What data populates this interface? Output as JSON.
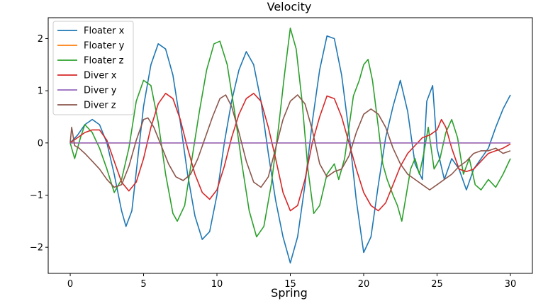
{
  "chart_data": {
    "type": "line",
    "title": "Velocity",
    "xlabel": "Spring",
    "ylabel": "",
    "xlim": [
      -1.5,
      31.5
    ],
    "ylim": [
      -2.5,
      2.4
    ],
    "xticks": [
      0,
      5,
      10,
      15,
      20,
      25,
      30
    ],
    "yticks": [
      -2,
      -1,
      0,
      1,
      2
    ],
    "ytick_labels": [
      "−2",
      "−1",
      "0",
      "1",
      "2"
    ],
    "grid": false,
    "legend_position": "top-left",
    "series": [
      {
        "name": "Floater x",
        "color": "#1f77b4",
        "points": [
          [
            0,
            0
          ],
          [
            0.5,
            0.15
          ],
          [
            1,
            0.35
          ],
          [
            1.5,
            0.45
          ],
          [
            2,
            0.35
          ],
          [
            2.5,
            0
          ],
          [
            3,
            -0.6
          ],
          [
            3.5,
            -1.3
          ],
          [
            3.8,
            -1.6
          ],
          [
            4.2,
            -1.3
          ],
          [
            4.6,
            -0.3
          ],
          [
            5,
            0.7
          ],
          [
            5.5,
            1.5
          ],
          [
            6,
            1.9
          ],
          [
            6.5,
            1.8
          ],
          [
            7,
            1.3
          ],
          [
            7.5,
            0.4
          ],
          [
            8,
            -0.6
          ],
          [
            8.5,
            -1.4
          ],
          [
            9,
            -1.85
          ],
          [
            9.5,
            -1.7
          ],
          [
            10,
            -1.0
          ],
          [
            10.5,
            0
          ],
          [
            11,
            0.8
          ],
          [
            11.5,
            1.4
          ],
          [
            12,
            1.75
          ],
          [
            12.5,
            1.5
          ],
          [
            13,
            0.8
          ],
          [
            13.5,
            -0.2
          ],
          [
            14,
            -1.1
          ],
          [
            14.5,
            -1.8
          ],
          [
            15,
            -2.3
          ],
          [
            15.5,
            -1.8
          ],
          [
            16,
            -0.8
          ],
          [
            16.5,
            0.4
          ],
          [
            17,
            1.4
          ],
          [
            17.5,
            2.05
          ],
          [
            18,
            2.0
          ],
          [
            18.5,
            1.3
          ],
          [
            19,
            0.2
          ],
          [
            19.5,
            -1.1
          ],
          [
            20,
            -2.1
          ],
          [
            20.5,
            -1.8
          ],
          [
            21,
            -0.8
          ],
          [
            21.5,
            0.1
          ],
          [
            22,
            0.7
          ],
          [
            22.5,
            1.2
          ],
          [
            23,
            0.6
          ],
          [
            23.5,
            -0.4
          ],
          [
            24,
            -0.7
          ],
          [
            24.3,
            0.8
          ],
          [
            24.7,
            1.1
          ],
          [
            25,
            -0.1
          ],
          [
            25.5,
            -0.7
          ],
          [
            26,
            -0.3
          ],
          [
            26.5,
            -0.5
          ],
          [
            27,
            -0.9
          ],
          [
            27.5,
            -0.5
          ],
          [
            28,
            -0.3
          ],
          [
            28.5,
            -0.1
          ],
          [
            29,
            0.3
          ],
          [
            29.5,
            0.65
          ],
          [
            30,
            0.92
          ]
        ]
      },
      {
        "name": "Floater y",
        "color": "#ff7f0e",
        "points": [
          [
            0,
            0
          ],
          [
            30,
            0
          ]
        ]
      },
      {
        "name": "Floater z",
        "color": "#2ca02c",
        "points": [
          [
            0,
            0
          ],
          [
            0.3,
            -0.3
          ],
          [
            0.7,
            0.1
          ],
          [
            1,
            0.35
          ],
          [
            1.5,
            0.2
          ],
          [
            2,
            -0.1
          ],
          [
            2.5,
            -0.5
          ],
          [
            3,
            -0.95
          ],
          [
            3.5,
            -0.7
          ],
          [
            4,
            -0.1
          ],
          [
            4.5,
            0.8
          ],
          [
            5,
            1.2
          ],
          [
            5.5,
            1.1
          ],
          [
            6,
            0.4
          ],
          [
            6.5,
            -0.6
          ],
          [
            7,
            -1.35
          ],
          [
            7.3,
            -1.5
          ],
          [
            7.8,
            -1.2
          ],
          [
            8.3,
            -0.3
          ],
          [
            8.8,
            0.6
          ],
          [
            9.3,
            1.4
          ],
          [
            9.8,
            1.9
          ],
          [
            10.2,
            1.95
          ],
          [
            10.7,
            1.5
          ],
          [
            11.2,
            0.6
          ],
          [
            11.7,
            -0.4
          ],
          [
            12.2,
            -1.3
          ],
          [
            12.7,
            -1.8
          ],
          [
            13.2,
            -1.6
          ],
          [
            13.7,
            -0.8
          ],
          [
            14.2,
            0.3
          ],
          [
            14.6,
            1.3
          ],
          [
            15,
            2.2
          ],
          [
            15.4,
            1.8
          ],
          [
            15.8,
            0.8
          ],
          [
            16.2,
            -0.5
          ],
          [
            16.6,
            -1.35
          ],
          [
            17,
            -1.2
          ],
          [
            17.5,
            -0.6
          ],
          [
            18,
            -0.4
          ],
          [
            18.3,
            -0.7
          ],
          [
            18.7,
            -0.3
          ],
          [
            19,
            0.3
          ],
          [
            19.3,
            0.9
          ],
          [
            19.7,
            1.2
          ],
          [
            20,
            1.5
          ],
          [
            20.3,
            1.6
          ],
          [
            20.6,
            1.2
          ],
          [
            21,
            0.3
          ],
          [
            21.3,
            -0.4
          ],
          [
            21.6,
            -0.7
          ],
          [
            22,
            -1.0
          ],
          [
            22.3,
            -1.2
          ],
          [
            22.6,
            -1.5
          ],
          [
            22.9,
            -1.0
          ],
          [
            23.2,
            -0.5
          ],
          [
            23.5,
            -0.3
          ],
          [
            23.8,
            -0.6
          ],
          [
            24.1,
            -0.2
          ],
          [
            24.4,
            0.3
          ],
          [
            24.8,
            -0.5
          ],
          [
            25.2,
            -0.3
          ],
          [
            25.6,
            0.2
          ],
          [
            26,
            0.45
          ],
          [
            26.4,
            0.1
          ],
          [
            26.8,
            -0.6
          ],
          [
            27.2,
            -0.3
          ],
          [
            27.6,
            -0.8
          ],
          [
            28,
            -0.9
          ],
          [
            28.5,
            -0.7
          ],
          [
            29,
            -0.85
          ],
          [
            29.5,
            -0.6
          ],
          [
            30,
            -0.3
          ]
        ]
      },
      {
        "name": "Diver x",
        "color": "#d62728",
        "points": [
          [
            0,
            0
          ],
          [
            0.5,
            0.1
          ],
          [
            1,
            0.2
          ],
          [
            1.5,
            0.25
          ],
          [
            2,
            0.25
          ],
          [
            2.5,
            0.05
          ],
          [
            3,
            -0.35
          ],
          [
            3.5,
            -0.75
          ],
          [
            4,
            -0.92
          ],
          [
            4.5,
            -0.75
          ],
          [
            5,
            -0.3
          ],
          [
            5.5,
            0.3
          ],
          [
            6,
            0.75
          ],
          [
            6.5,
            0.95
          ],
          [
            7,
            0.85
          ],
          [
            7.5,
            0.45
          ],
          [
            8,
            -0.1
          ],
          [
            8.5,
            -0.6
          ],
          [
            9,
            -0.95
          ],
          [
            9.5,
            -1.08
          ],
          [
            10,
            -0.9
          ],
          [
            10.5,
            -0.45
          ],
          [
            11,
            0.1
          ],
          [
            11.5,
            0.55
          ],
          [
            12,
            0.85
          ],
          [
            12.5,
            0.95
          ],
          [
            13,
            0.8
          ],
          [
            13.5,
            0.3
          ],
          [
            14,
            -0.3
          ],
          [
            14.5,
            -0.95
          ],
          [
            15,
            -1.3
          ],
          [
            15.5,
            -1.2
          ],
          [
            16,
            -0.7
          ],
          [
            16.5,
            0.0
          ],
          [
            17,
            0.5
          ],
          [
            17.5,
            0.9
          ],
          [
            18,
            0.85
          ],
          [
            18.5,
            0.5
          ],
          [
            19,
            0.0
          ],
          [
            19.5,
            -0.5
          ],
          [
            20,
            -0.95
          ],
          [
            20.5,
            -1.2
          ],
          [
            21,
            -1.3
          ],
          [
            21.5,
            -1.15
          ],
          [
            22,
            -0.8
          ],
          [
            22.5,
            -0.45
          ],
          [
            23,
            -0.2
          ],
          [
            23.5,
            -0.05
          ],
          [
            24,
            0.1
          ],
          [
            24.5,
            0.15
          ],
          [
            25,
            0.25
          ],
          [
            25.3,
            0.45
          ],
          [
            25.6,
            0.3
          ],
          [
            26,
            -0.1
          ],
          [
            26.5,
            -0.5
          ],
          [
            27,
            -0.55
          ],
          [
            27.5,
            -0.5
          ],
          [
            28,
            -0.35
          ],
          [
            28.5,
            -0.2
          ],
          [
            29,
            -0.15
          ],
          [
            29.5,
            -0.1
          ],
          [
            30,
            -0.02
          ]
        ]
      },
      {
        "name": "Diver y",
        "color": "#9467bd",
        "points": [
          [
            0,
            0
          ],
          [
            30,
            0
          ]
        ]
      },
      {
        "name": "Diver z",
        "color": "#8c564b",
        "points": [
          [
            0,
            0
          ],
          [
            0.1,
            0.3
          ],
          [
            0.3,
            -0.05
          ],
          [
            0.6,
            -0.1
          ],
          [
            1,
            -0.2
          ],
          [
            1.5,
            -0.35
          ],
          [
            2,
            -0.5
          ],
          [
            2.5,
            -0.7
          ],
          [
            3,
            -0.85
          ],
          [
            3.5,
            -0.8
          ],
          [
            4,
            -0.45
          ],
          [
            4.5,
            0.05
          ],
          [
            5,
            0.45
          ],
          [
            5.3,
            0.48
          ],
          [
            5.7,
            0.3
          ],
          [
            6.2,
            -0.05
          ],
          [
            6.7,
            -0.4
          ],
          [
            7.2,
            -0.65
          ],
          [
            7.7,
            -0.72
          ],
          [
            8.2,
            -0.6
          ],
          [
            8.7,
            -0.3
          ],
          [
            9.2,
            0.1
          ],
          [
            9.7,
            0.5
          ],
          [
            10.2,
            0.85
          ],
          [
            10.6,
            0.92
          ],
          [
            11,
            0.7
          ],
          [
            11.5,
            0.2
          ],
          [
            12,
            -0.35
          ],
          [
            12.5,
            -0.75
          ],
          [
            13,
            -0.85
          ],
          [
            13.5,
            -0.65
          ],
          [
            14,
            -0.1
          ],
          [
            14.5,
            0.45
          ],
          [
            15,
            0.8
          ],
          [
            15.5,
            0.92
          ],
          [
            16,
            0.75
          ],
          [
            16.5,
            0.25
          ],
          [
            17,
            -0.4
          ],
          [
            17.5,
            -0.65
          ],
          [
            18,
            -0.55
          ],
          [
            18.5,
            -0.5
          ],
          [
            19,
            -0.25
          ],
          [
            19.5,
            0.2
          ],
          [
            20,
            0.55
          ],
          [
            20.5,
            0.65
          ],
          [
            21,
            0.55
          ],
          [
            21.5,
            0.3
          ],
          [
            22,
            -0.1
          ],
          [
            22.5,
            -0.4
          ],
          [
            23,
            -0.6
          ],
          [
            23.5,
            -0.7
          ],
          [
            24,
            -0.8
          ],
          [
            24.5,
            -0.9
          ],
          [
            25,
            -0.8
          ],
          [
            25.5,
            -0.7
          ],
          [
            26,
            -0.6
          ],
          [
            26.5,
            -0.45
          ],
          [
            27,
            -0.35
          ],
          [
            27.5,
            -0.2
          ],
          [
            28,
            -0.15
          ],
          [
            28.5,
            -0.15
          ],
          [
            29,
            -0.1
          ],
          [
            29.5,
            -0.2
          ],
          [
            30,
            -0.15
          ]
        ]
      }
    ]
  }
}
